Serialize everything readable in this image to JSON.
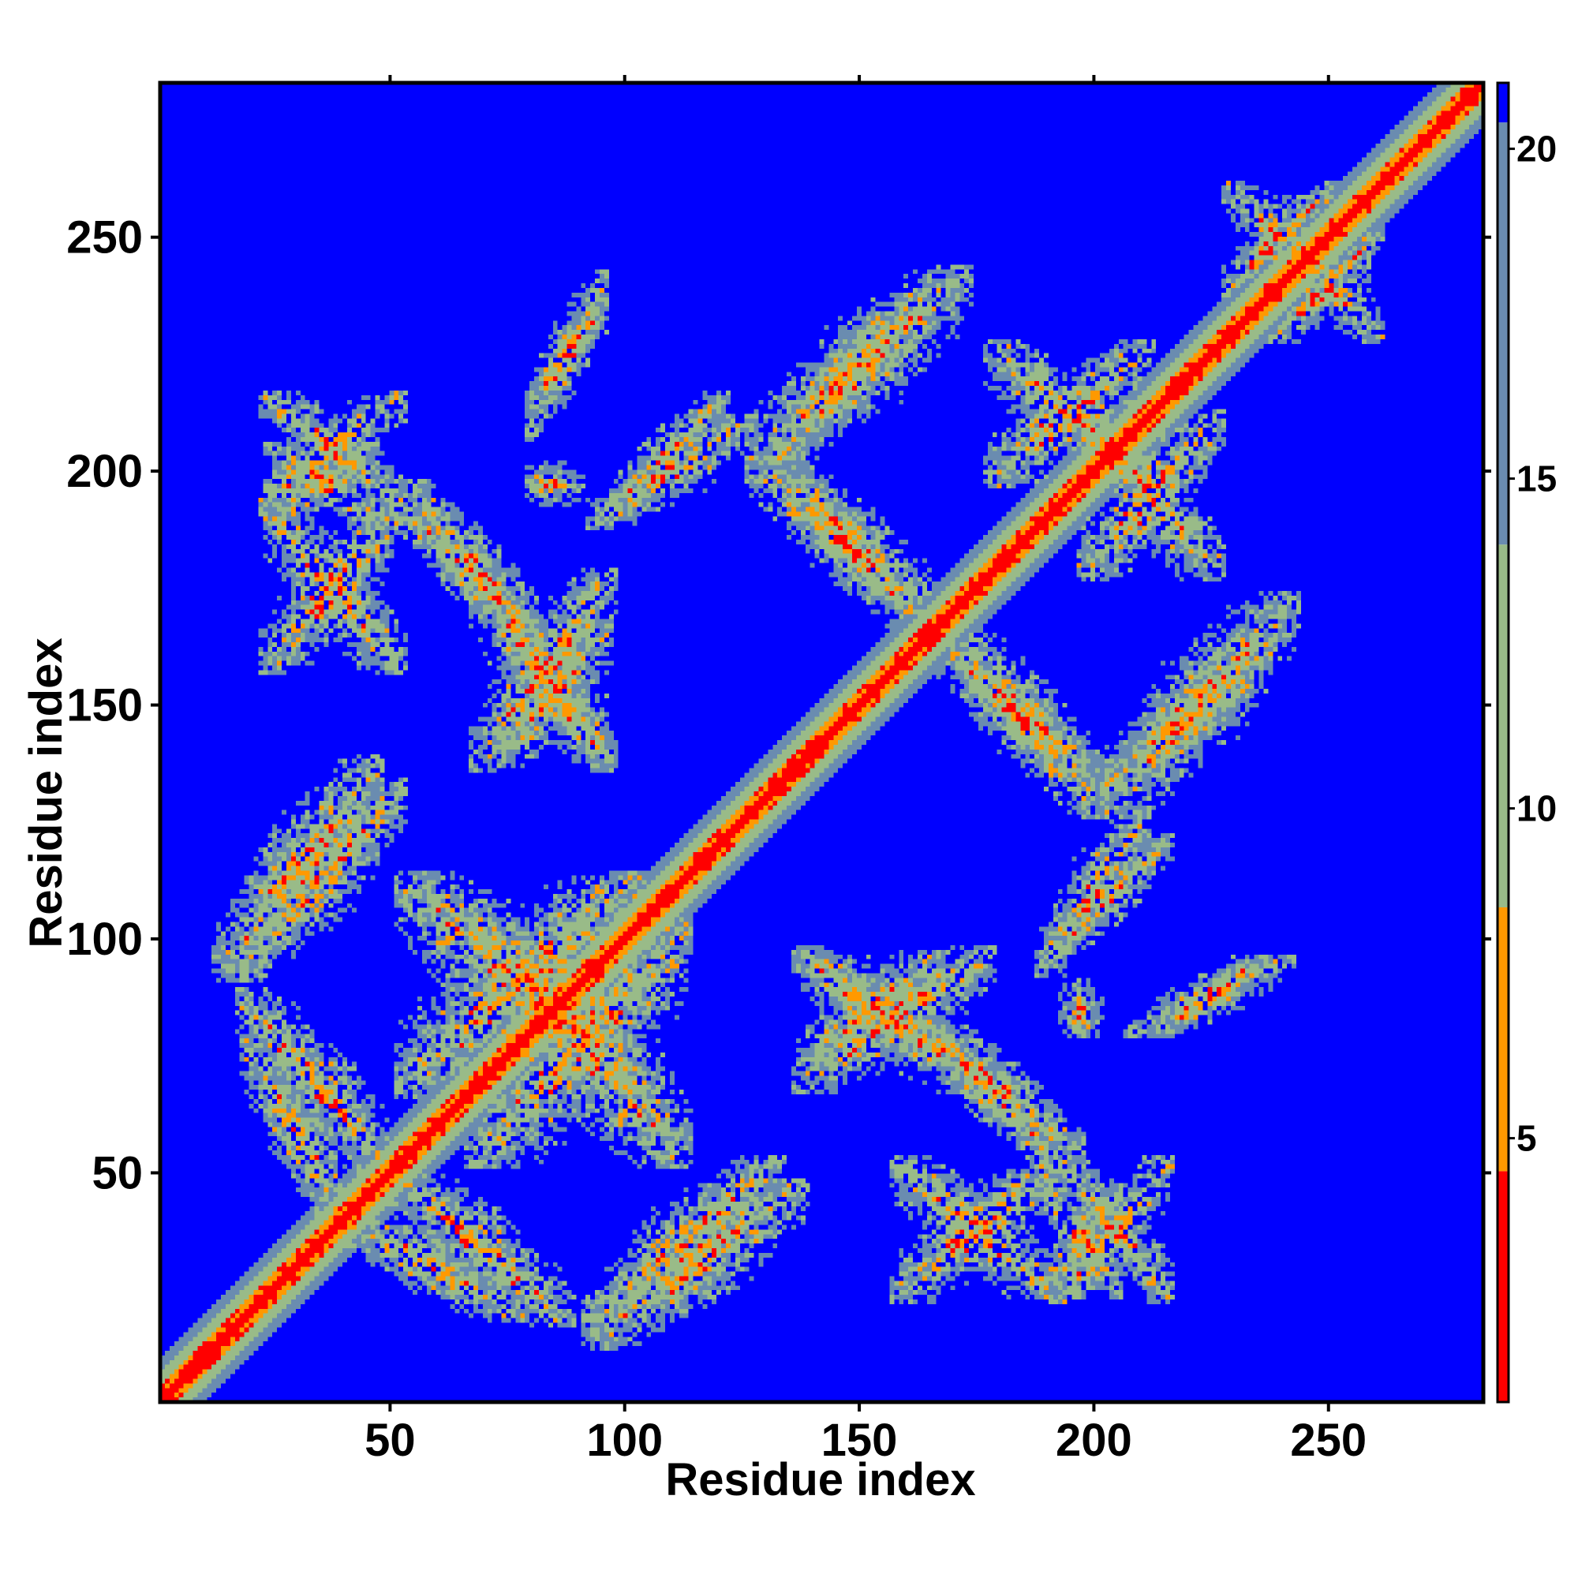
{
  "chart_data": {
    "type": "heatmap",
    "title": "",
    "xlabel": "Residue index",
    "ylabel": "Residue index",
    "xlim": [
      1,
      283
    ],
    "ylim": [
      1,
      283
    ],
    "x_ticks": [
      50,
      100,
      150,
      200,
      250
    ],
    "y_ticks": [
      50,
      100,
      150,
      200,
      250
    ],
    "colorbar": {
      "range": [
        1,
        21
      ],
      "ticks": [
        5,
        10,
        15,
        20
      ],
      "colors": {
        "low": "#ff0000",
        "mid_low": "#ff9900",
        "mid": "#99bb88",
        "high": "#6a8cb0",
        "background": "#0000ff"
      }
    },
    "symmetric": true,
    "diagonal_band": {
      "from": 1,
      "to": 283
    },
    "contact_blocks": [
      {
        "x": [
          20,
          40
        ],
        "y": [
          40,
          75
        ],
        "orientation": "antidiagonal"
      },
      {
        "x": [
          50,
          85
        ],
        "y": [
          20,
          50
        ],
        "orientation": "antidiagonal"
      },
      {
        "x": [
          95,
          130
        ],
        "y": [
          20,
          50
        ],
        "orientation": "diagonal"
      },
      {
        "x": [
          15,
          45
        ],
        "y": [
          95,
          135
        ],
        "orientation": "diagonal"
      },
      {
        "x": [
          55,
          100
        ],
        "y": [
          70,
          110
        ],
        "orientation": "mixed"
      },
      {
        "x": [
          140,
          175
        ],
        "y": [
          70,
          95
        ],
        "orientation": "mixed"
      },
      {
        "x": [
          165,
          195
        ],
        "y": [
          55,
          80
        ],
        "orientation": "antidiagonal"
      },
      {
        "x": [
          190,
          205
        ],
        "y": [
          75,
          90
        ],
        "orientation": "spot"
      },
      {
        "x": [
          210,
          240
        ],
        "y": [
          80,
          95
        ],
        "orientation": "diagonal"
      },
      {
        "x": [
          195,
          215
        ],
        "y": [
          25,
          50
        ],
        "orientation": "mixed"
      },
      {
        "x": [
          160,
          190
        ],
        "y": [
          25,
          50
        ],
        "orientation": "mixed"
      },
      {
        "x": [
          55,
          75
        ],
        "y": [
          170,
          190
        ],
        "orientation": "antidiagonal"
      },
      {
        "x": [
          75,
          95
        ],
        "y": [
          190,
          205
        ],
        "orientation": "spot"
      },
      {
        "x": [
          25,
          45
        ],
        "y": [
          190,
          205
        ],
        "orientation": "mixed"
      },
      {
        "x": [
          80,
          95
        ],
        "y": [
          215,
          235
        ],
        "orientation": "diagonal"
      },
      {
        "x": [
          95,
          125
        ],
        "y": [
          190,
          210
        ],
        "orientation": "diagonal"
      },
      {
        "x": [
          135,
          160
        ],
        "y": [
          205,
          235
        ],
        "orientation": "diagonal"
      },
      {
        "x": [
          135,
          160
        ],
        "y": [
          170,
          200
        ],
        "orientation": "antidiagonal"
      },
      {
        "x": [
          170,
          200
        ],
        "y": [
          130,
          165
        ],
        "orientation": "antidiagonal"
      },
      {
        "x": [
          205,
          240
        ],
        "y": [
          130,
          170
        ],
        "orientation": "diagonal"
      },
      {
        "x": [
          195,
          215
        ],
        "y": [
          100,
          120
        ],
        "orientation": "diagonal"
      },
      {
        "x": [
          75,
          95
        ],
        "y": [
          140,
          165
        ],
        "orientation": "mixed"
      },
      {
        "x": [
          180,
          210
        ],
        "y": [
          200,
          225
        ],
        "orientation": "mixed"
      },
      {
        "x": [
          230,
          250
        ],
        "y": [
          240,
          260
        ],
        "orientation": "mixed"
      }
    ]
  }
}
